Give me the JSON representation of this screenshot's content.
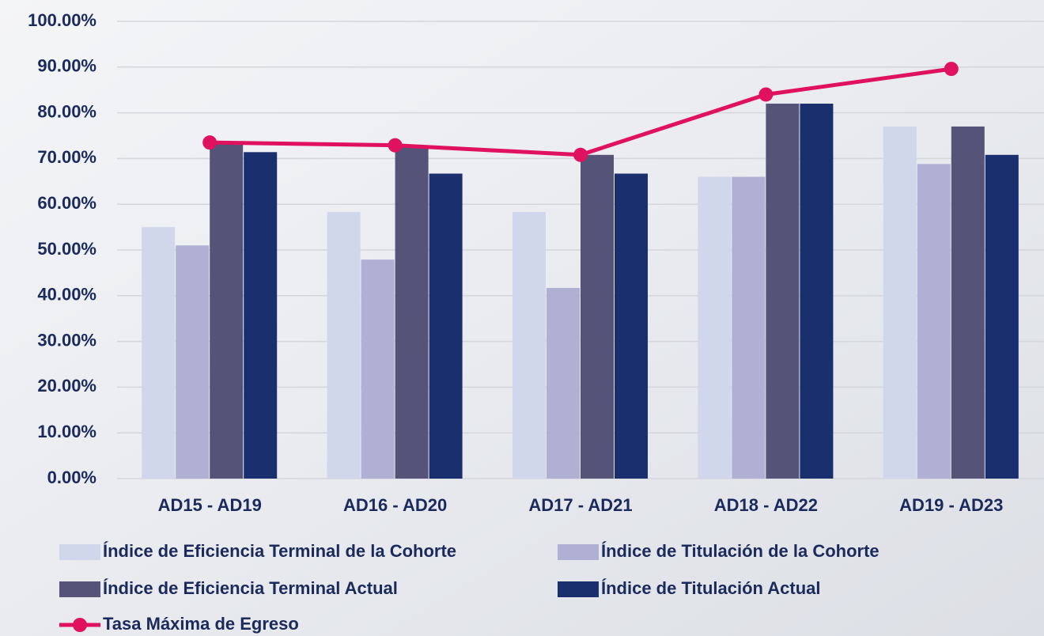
{
  "chart_data": {
    "type": "bar",
    "categories": [
      "AD15 - AD19",
      "AD16 - AD20",
      "AD17 - AD21",
      "AD18 - AD22",
      "AD19 - AD23"
    ],
    "series": [
      {
        "name": "Índice de Eficiencia Terminal de la Cohorte",
        "color": "#d0d7ea",
        "values": [
          55,
          58.3,
          58.3,
          66,
          77
        ]
      },
      {
        "name": "Índice de Titulación de la Cohorte",
        "color": "#afb0d3",
        "values": [
          51,
          47.9,
          41.7,
          66,
          68.8
        ]
      },
      {
        "name": "Índice de Eficiencia Terminal Actual",
        "color": "#555377",
        "values": [
          73.5,
          72.9,
          70.8,
          82,
          77
        ]
      },
      {
        "name": "Índice de Titulación Actual",
        "color": "#1a2f6e",
        "values": [
          71.4,
          66.7,
          66.7,
          82,
          70.8
        ]
      },
      {
        "name": "Tasa Máxima de Egreso",
        "color": "#e0115f",
        "type": "line",
        "values": [
          73.5,
          72.9,
          70.8,
          84,
          89.6
        ]
      }
    ],
    "ylim": [
      0,
      100
    ],
    "yticks": [
      {
        "value": 0,
        "label": "0.00%"
      },
      {
        "value": 10,
        "label": "10.00%"
      },
      {
        "value": 20,
        "label": "20.00%"
      },
      {
        "value": 30,
        "label": "30.00%"
      },
      {
        "value": 40,
        "label": "40.00%"
      },
      {
        "value": 50,
        "label": "50.00%"
      },
      {
        "value": 60,
        "label": "60.00%"
      },
      {
        "value": 70,
        "label": "70.00%"
      },
      {
        "value": 80,
        "label": "80.00%"
      },
      {
        "value": 90,
        "label": "90.00%"
      },
      {
        "value": 100,
        "label": "100.00%"
      }
    ],
    "grid": true
  }
}
